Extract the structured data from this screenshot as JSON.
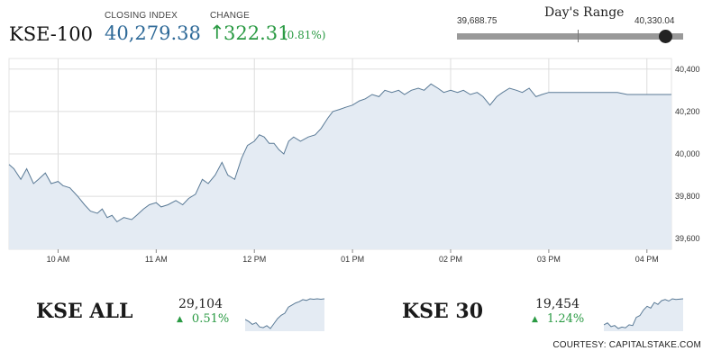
{
  "index_name": "KSE-100",
  "closing_index": {
    "label": "CLOSING INDEX",
    "value": "40,279.38"
  },
  "change": {
    "label": "CHANGE",
    "arrow_icon": "up-arrow-icon",
    "value": "322.31",
    "percent": "(0.81%)"
  },
  "days_range": {
    "title": "Day's Range",
    "low": "39,688.75",
    "high": "40,330.04",
    "low_value": 39688.75,
    "high_value": 40330.04,
    "current_value": 40279.38
  },
  "colors": {
    "positive": "#2a9a43",
    "index_value": "#2f6a98",
    "line": "#5a7a96",
    "area": "#e4ebf3",
    "grid": "#dddddd"
  },
  "chart_data": {
    "type": "area",
    "x_ticks": [
      "10 AM",
      "11 AM",
      "12 PM",
      "01 PM",
      "02 PM",
      "03 PM",
      "04 PM"
    ],
    "y_ticks": [
      "40,400",
      "40,200",
      "40,000",
      "39,800",
      "39,600"
    ],
    "ylim": [
      39550,
      40450
    ],
    "xlim": [
      9.5,
      16.25
    ],
    "grid": true,
    "series": [
      {
        "x": [
          9.5,
          9.55,
          9.62,
          9.68,
          9.75,
          9.8,
          9.87,
          9.93,
          10.0,
          10.05,
          10.12,
          10.2,
          10.27,
          10.33,
          10.4,
          10.45,
          10.5,
          10.55,
          10.6,
          10.67,
          10.75,
          10.8,
          10.87,
          10.93,
          11.0,
          11.05,
          11.12,
          11.2,
          11.27,
          11.33,
          11.4,
          11.47,
          11.53,
          11.6,
          11.67,
          11.73,
          11.8,
          11.87,
          11.93,
          12.0,
          12.05,
          12.1,
          12.15,
          12.2,
          12.25,
          12.3,
          12.35,
          12.4,
          12.47,
          12.55,
          12.62,
          12.68,
          12.75,
          12.8,
          12.87,
          12.93,
          13.0,
          13.07,
          13.13,
          13.2,
          13.27,
          13.33,
          13.4,
          13.47,
          13.53,
          13.6,
          13.67,
          13.73,
          13.8,
          13.87,
          13.93,
          14.0,
          14.07,
          14.13,
          14.2,
          14.27,
          14.33,
          14.4,
          14.47,
          14.53,
          14.6,
          14.67,
          14.73,
          14.8,
          14.87,
          14.93,
          15.0,
          15.05,
          15.1,
          15.17,
          15.23,
          15.3,
          15.37,
          15.43,
          15.5,
          15.6,
          15.7,
          15.8,
          15.9,
          16.0,
          16.1,
          16.25
        ],
        "values": [
          39950,
          39930,
          39880,
          39930,
          39860,
          39880,
          39910,
          39860,
          39870,
          39850,
          39840,
          39800,
          39760,
          39730,
          39720,
          39740,
          39700,
          39710,
          39680,
          39700,
          39690,
          39710,
          39740,
          39760,
          39770,
          39750,
          39760,
          39780,
          39760,
          39790,
          39810,
          39880,
          39860,
          39900,
          39960,
          39900,
          39880,
          39980,
          40040,
          40060,
          40090,
          40080,
          40050,
          40050,
          40020,
          40000,
          40060,
          40080,
          40060,
          40080,
          40090,
          40120,
          40170,
          40200,
          40210,
          40220,
          40230,
          40250,
          40260,
          40280,
          40270,
          40300,
          40290,
          40300,
          40280,
          40300,
          40310,
          40300,
          40330,
          40310,
          40290,
          40300,
          40290,
          40300,
          40280,
          40290,
          40270,
          40230,
          40270,
          40290,
          40310,
          40300,
          40290,
          40310,
          40270,
          40280,
          40290,
          40290,
          40290,
          40290,
          40290,
          40290,
          40290,
          40290,
          40290,
          40290,
          40290,
          40280,
          40280,
          40280,
          40280,
          40280
        ]
      }
    ]
  },
  "mini_indices": [
    {
      "name": "KSE ALL",
      "value": "29,104",
      "change": "0.51%",
      "arrow_icon": "up-triangle-icon",
      "chart_data": {
        "type": "area",
        "values": [
          40,
          35,
          28,
          32,
          22,
          20,
          25,
          18,
          30,
          42,
          50,
          55,
          70,
          75,
          80,
          83,
          88,
          86,
          90,
          89,
          90,
          89,
          90
        ]
      }
    },
    {
      "name": "KSE 30",
      "value": "19,454",
      "change": "1.24%",
      "arrow_icon": "up-triangle-icon",
      "chart_data": {
        "type": "area",
        "values": [
          20,
          25,
          15,
          18,
          10,
          14,
          12,
          20,
          18,
          40,
          45,
          60,
          70,
          65,
          80,
          75,
          85,
          88,
          84,
          90,
          88,
          89,
          90
        ]
      }
    }
  ],
  "courtesy": "COURTESY: CAPITALSTAKE.COM"
}
